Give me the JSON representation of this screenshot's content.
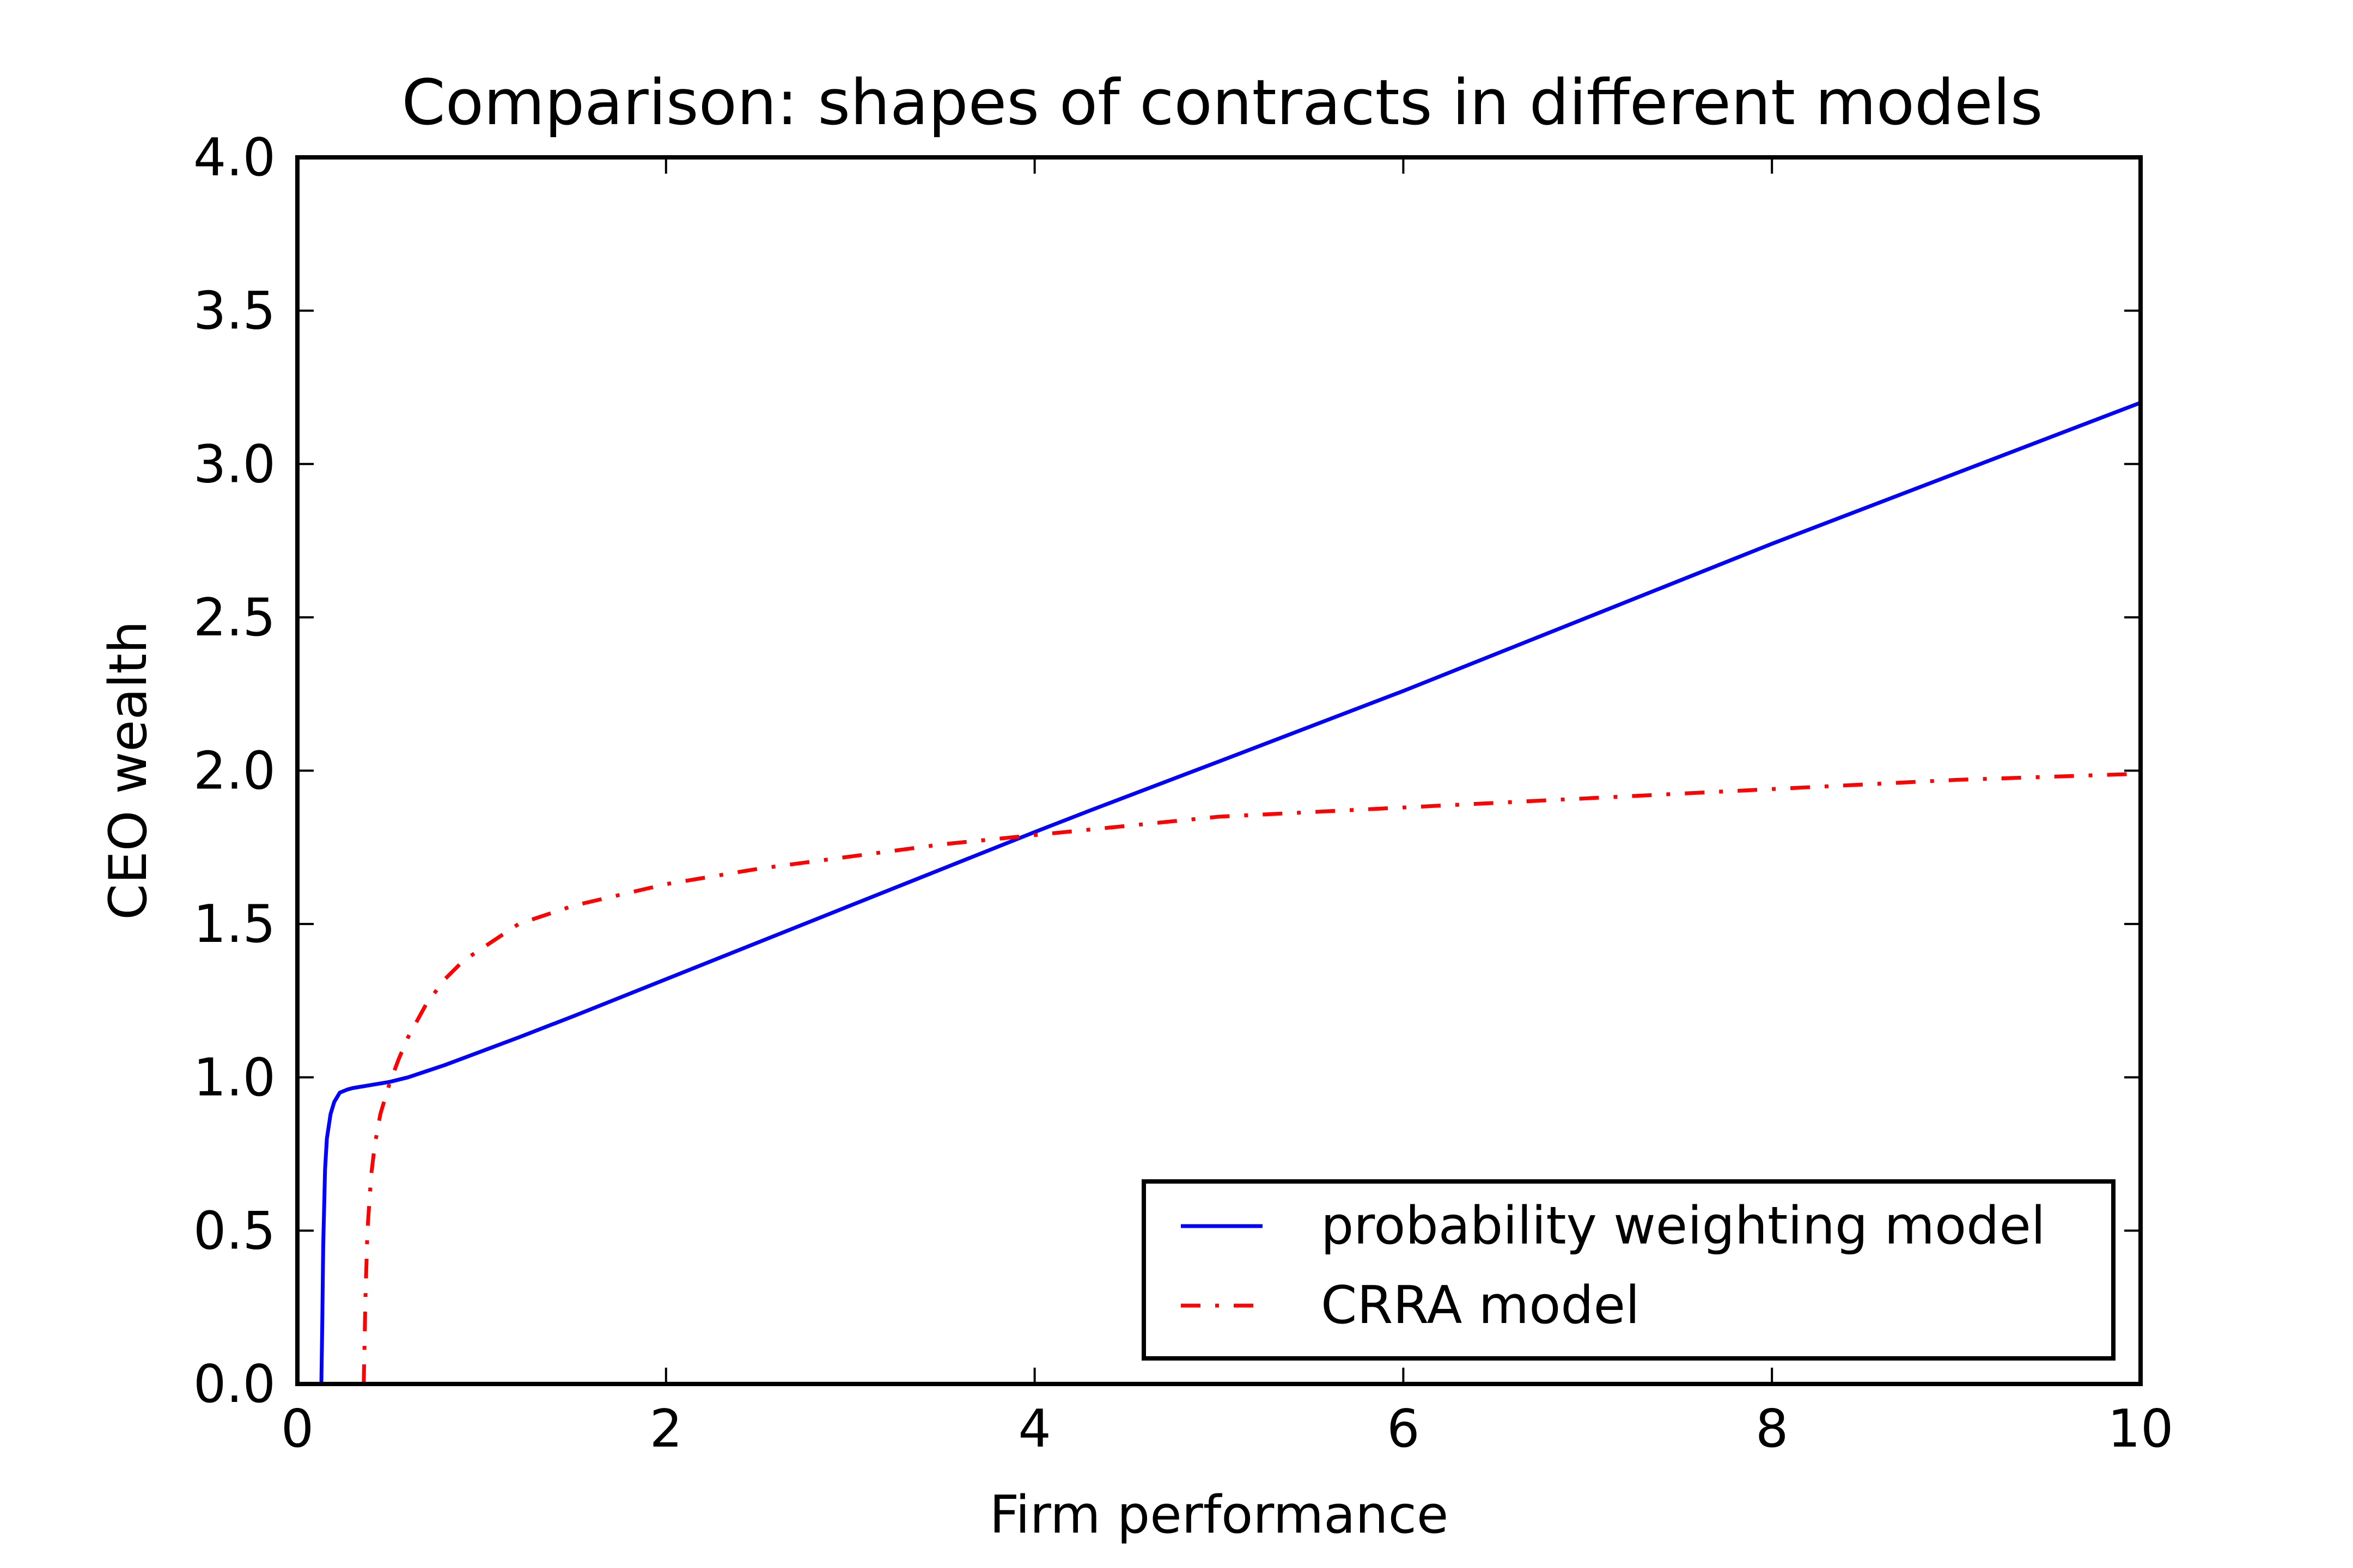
{
  "chart_data": {
    "type": "line",
    "title": "Comparison: shapes of contracts in different models",
    "xlabel": "Firm performance",
    "ylabel": "CEO wealth",
    "xlim": [
      0,
      10
    ],
    "ylim": [
      0,
      4.0
    ],
    "xticks": [
      0,
      2,
      4,
      6,
      8,
      10
    ],
    "xtick_labels": [
      "0",
      "2",
      "4",
      "6",
      "8",
      "10"
    ],
    "yticks": [
      0,
      0.5,
      1.0,
      1.5,
      2.0,
      2.5,
      3.0,
      3.5,
      4.0
    ],
    "ytick_labels": [
      "0.0",
      "0.5",
      "1.0",
      "1.5",
      "2.0",
      "2.5",
      "3.0",
      "3.5",
      "4.0"
    ],
    "grid": false,
    "legend_position": "lower-right",
    "series": [
      {
        "name": "probability weighting model",
        "color": "#0000ff",
        "style": "solid",
        "x": [
          0.13,
          0.135,
          0.14,
          0.15,
          0.16,
          0.18,
          0.2,
          0.23,
          0.27,
          0.3,
          0.4,
          0.5,
          0.6,
          0.7,
          0.8,
          1.0,
          1.2,
          1.5,
          2.0,
          2.5,
          3.0,
          3.5,
          4.0,
          4.3,
          5.0,
          6.0,
          7.0,
          8.0,
          9.0,
          10.0
        ],
        "y": [
          0.0,
          0.2,
          0.45,
          0.7,
          0.8,
          0.88,
          0.92,
          0.95,
          0.96,
          0.965,
          0.975,
          0.985,
          1.0,
          1.02,
          1.04,
          1.085,
          1.13,
          1.2,
          1.32,
          1.44,
          1.56,
          1.68,
          1.8,
          1.87,
          2.03,
          2.26,
          2.5,
          2.74,
          2.97,
          3.2
        ]
      },
      {
        "name": "CRRA model",
        "color": "#ff0000",
        "style": "dashdot",
        "x": [
          0.36,
          0.37,
          0.38,
          0.4,
          0.42,
          0.45,
          0.5,
          0.55,
          0.6,
          0.7,
          0.8,
          0.9,
          1.0,
          1.2,
          1.5,
          2.0,
          2.5,
          3.0,
          3.5,
          4.0,
          4.5,
          5.0,
          6.0,
          7.0,
          8.0,
          9.0,
          10.0
        ],
        "y": [
          0.0,
          0.3,
          0.5,
          0.68,
          0.78,
          0.88,
          0.98,
          1.06,
          1.13,
          1.24,
          1.32,
          1.38,
          1.42,
          1.5,
          1.56,
          1.63,
          1.68,
          1.72,
          1.76,
          1.79,
          1.82,
          1.85,
          1.88,
          1.91,
          1.94,
          1.97,
          1.99
        ]
      }
    ]
  }
}
